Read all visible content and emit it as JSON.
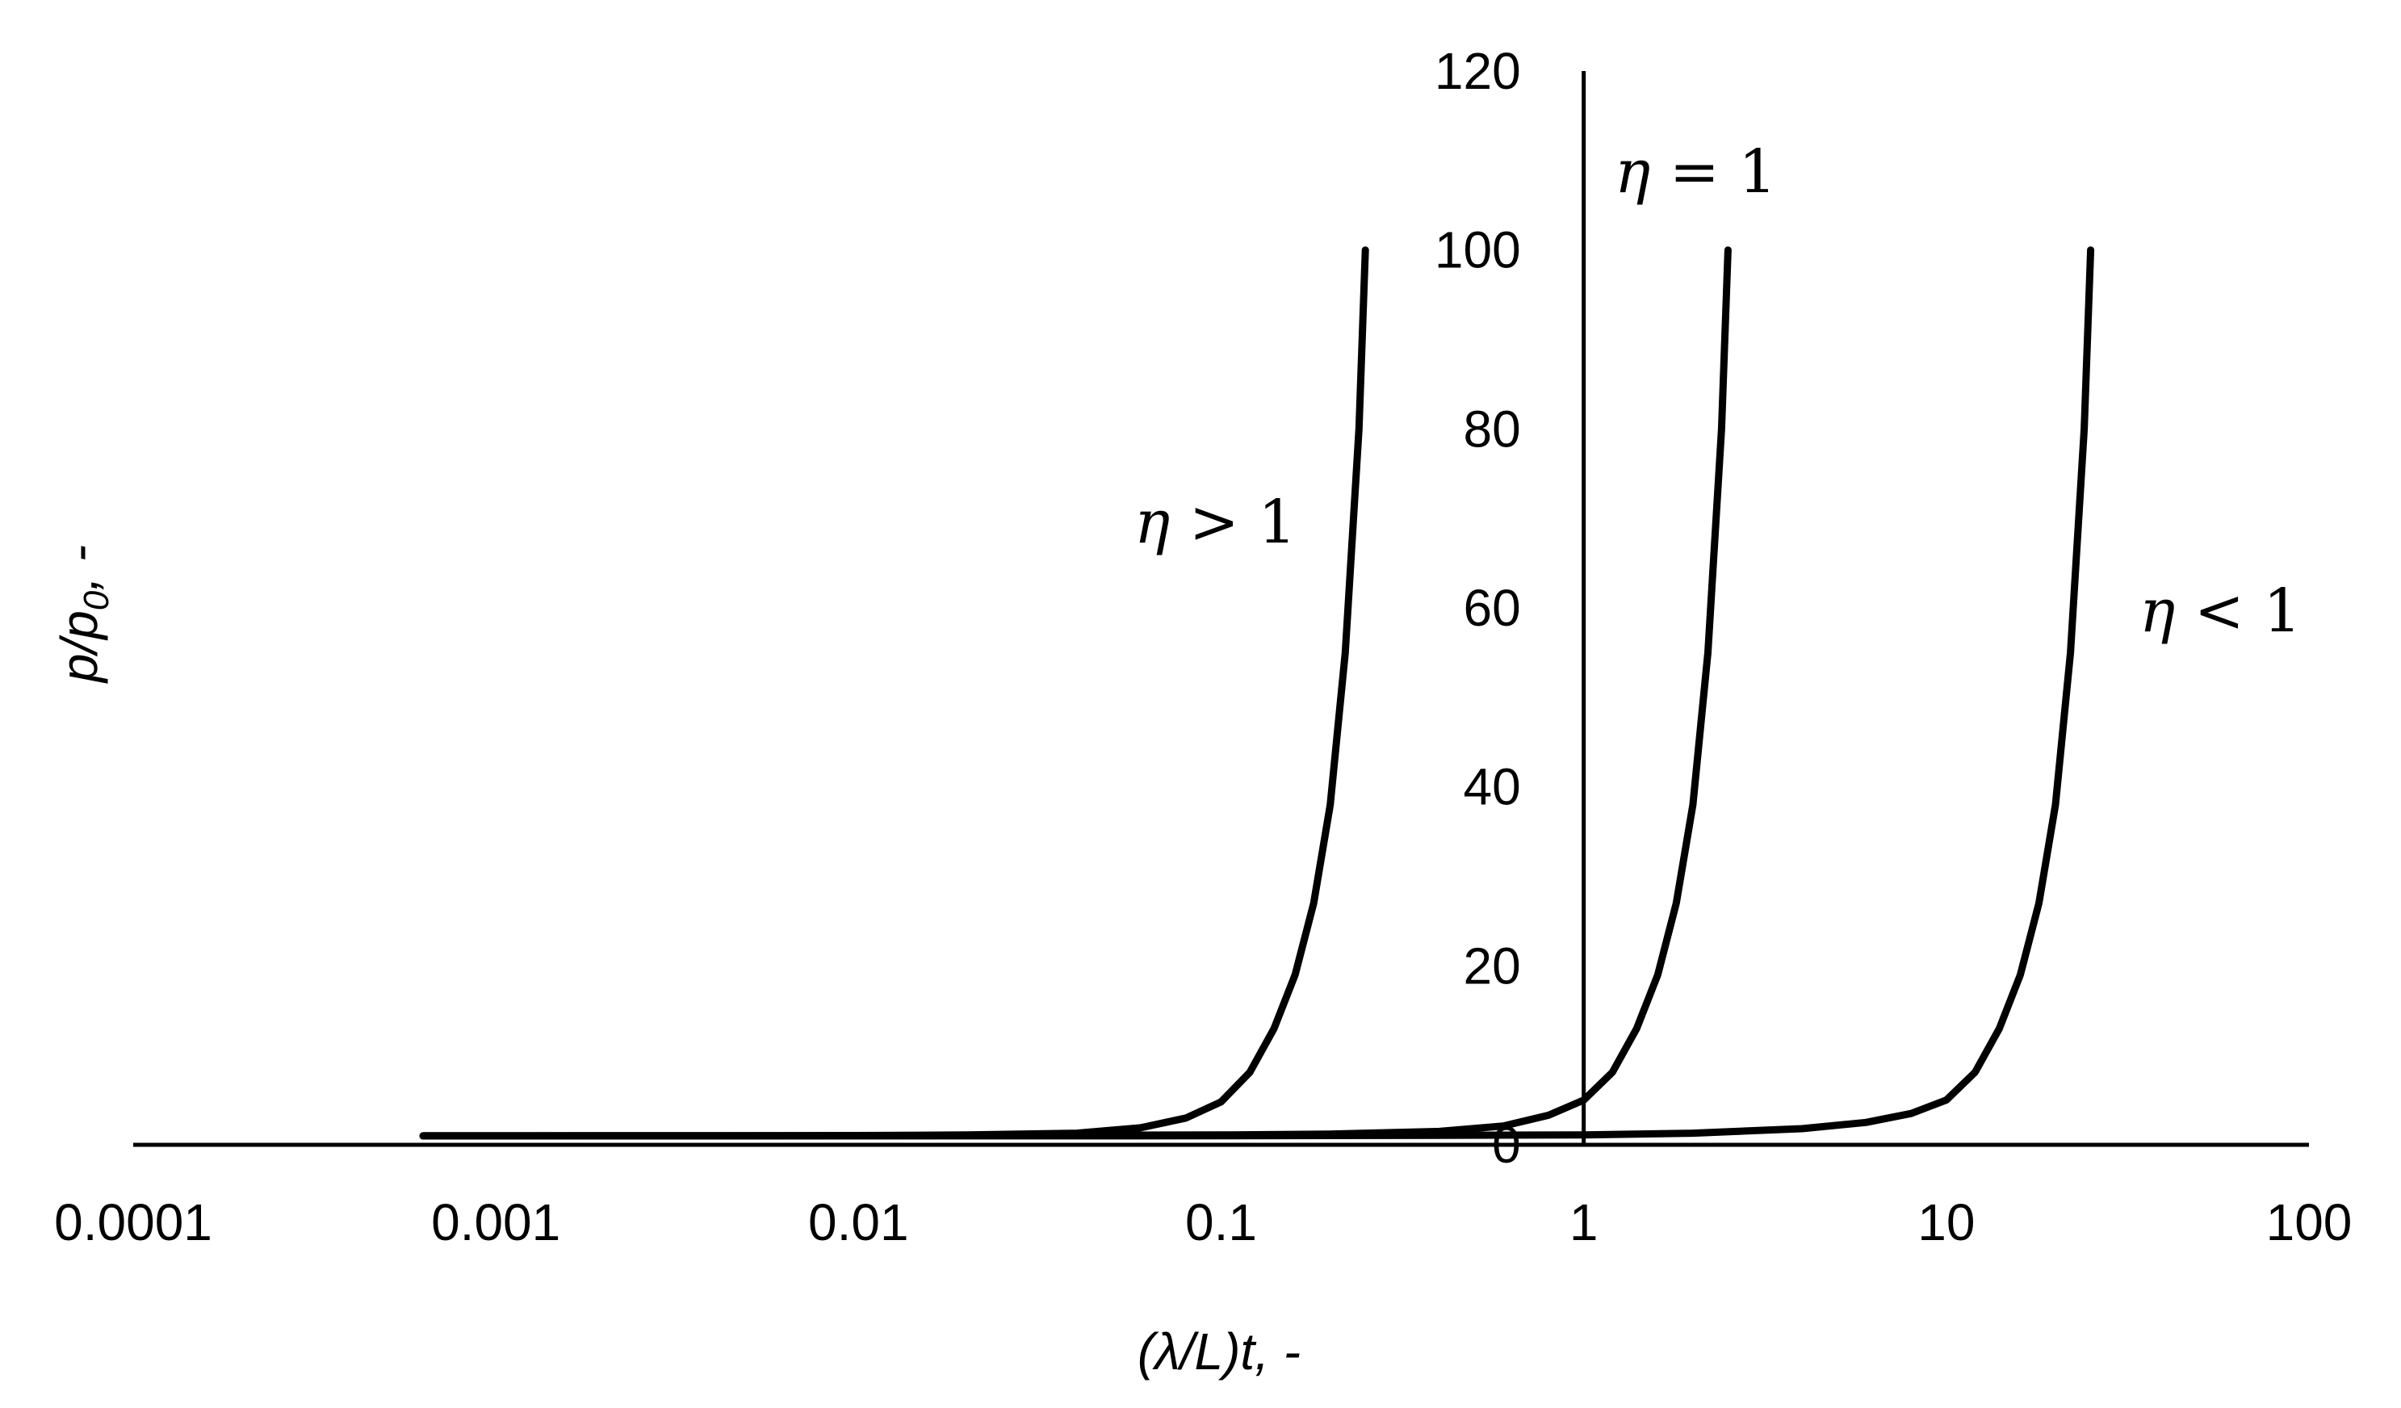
{
  "chart_data": {
    "type": "line",
    "x_scale": "log",
    "x_axis": {
      "label": "(λ/L)t, -",
      "range": [
        0.0001,
        100
      ],
      "ticks": [
        0.0001,
        0.001,
        0.01,
        0.1,
        1,
        10,
        100
      ],
      "tick_labels": [
        "0.0001",
        "0.001",
        "0.01",
        "0.1",
        "1",
        "10",
        "100"
      ]
    },
    "y_axis": {
      "label": "p/p₀, -",
      "label_main": "p/p",
      "label_sub": "0",
      "label_tail": ", -",
      "range": [
        0,
        120
      ],
      "ticks": [
        0,
        20,
        40,
        60,
        80,
        100,
        120
      ],
      "tick_labels": [
        "0",
        "20",
        "40",
        "60",
        "80",
        "100",
        "120"
      ],
      "crosses_x_at": 1
    },
    "grid": false,
    "legend": "none",
    "series": [
      {
        "label_greek": "η",
        "label_rest": " > 1",
        "x": [
          0.00063,
          0.001,
          0.002,
          0.005,
          0.01,
          0.02,
          0.04,
          0.06,
          0.08,
          0.1,
          0.12,
          0.14,
          0.16,
          0.18,
          0.2,
          0.22,
          0.24,
          0.25
        ],
        "y": [
          1,
          1,
          1.01,
          1.02,
          1.04,
          1.1,
          1.3,
          1.9,
          3.0,
          4.8,
          8.1,
          13,
          19,
          27,
          38,
          55,
          80,
          100
        ]
      },
      {
        "label_greek": "η",
        "label_rest": " = 1",
        "x": [
          0.00063,
          0.001,
          0.01,
          0.1,
          0.2,
          0.4,
          0.6,
          0.8,
          1.0,
          1.2,
          1.4,
          1.6,
          1.8,
          2.0,
          2.2,
          2.4,
          2.5
        ],
        "y": [
          1,
          1,
          1.01,
          1.1,
          1.2,
          1.5,
          2.1,
          3.3,
          5.0,
          8.1,
          13,
          19,
          27,
          38,
          55,
          80,
          100
        ]
      },
      {
        "label_greek": "η",
        "label_rest": " < 1",
        "x": [
          0.00063,
          0.01,
          0.1,
          1,
          2,
          4,
          6,
          8,
          10,
          12,
          14,
          16,
          18,
          20,
          22,
          24,
          25
        ],
        "y": [
          1,
          1,
          1.01,
          1.1,
          1.3,
          1.8,
          2.5,
          3.5,
          5.0,
          8.1,
          13,
          19,
          27,
          38,
          55,
          80,
          100
        ]
      }
    ]
  }
}
